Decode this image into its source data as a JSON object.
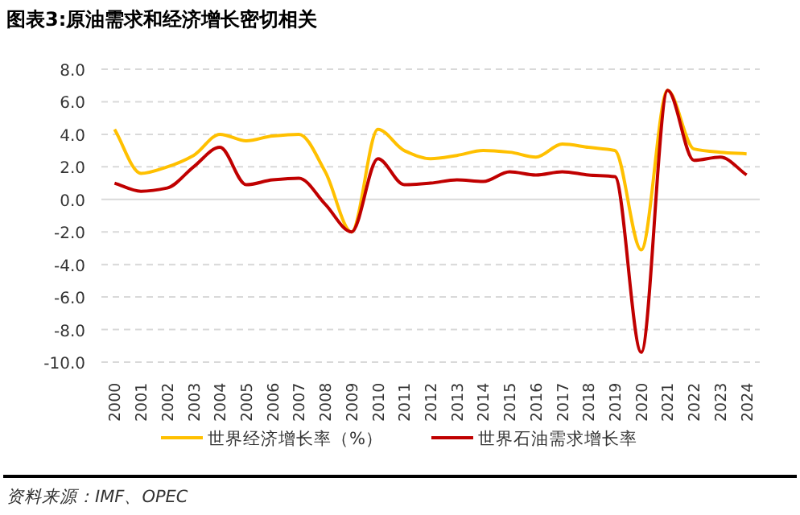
{
  "chart_data": {
    "type": "line",
    "title": "图表3:原油需求和经济增长密切相关",
    "annotations": [
      "资料来源：IMF、OPEC"
    ],
    "categories": [
      "2000",
      "2001",
      "2002",
      "2003",
      "2004",
      "2005",
      "2006",
      "2007",
      "2008",
      "2009",
      "2010",
      "2011",
      "2012",
      "2013",
      "2014",
      "2015",
      "2016",
      "2017",
      "2018",
      "2019",
      "2020",
      "2021",
      "2022",
      "2023",
      "2024"
    ],
    "series": [
      {
        "name": "世界经济增长率（%）",
        "color": "#ffc000",
        "values": [
          4.3,
          1.6,
          2.0,
          2.7,
          4.0,
          3.6,
          3.9,
          4.0,
          1.7,
          -2.0,
          4.3,
          3.0,
          2.5,
          2.7,
          3.0,
          2.9,
          2.6,
          3.4,
          3.2,
          3.0,
          -3.1,
          6.7,
          3.1,
          2.9,
          2.8
        ]
      },
      {
        "name": "世界石油需求增长率",
        "color": "#c00000",
        "values": [
          1.0,
          0.5,
          0.7,
          2.0,
          3.2,
          0.9,
          1.2,
          1.3,
          -0.3,
          -2.0,
          2.5,
          0.9,
          1.0,
          1.2,
          1.1,
          1.7,
          1.5,
          1.7,
          1.5,
          1.4,
          -9.4,
          6.7,
          2.4,
          2.6,
          1.5
        ]
      }
    ],
    "ylim": [
      -10,
      8
    ],
    "yticks": [
      {
        "value": -10,
        "label": "-10.0"
      },
      {
        "value": -8,
        "label": "-8.0"
      },
      {
        "value": -6,
        "label": "-6.0"
      },
      {
        "value": -4,
        "label": "-4.0"
      },
      {
        "value": -2,
        "label": "-2.0"
      },
      {
        "value": 0,
        "label": "0.0"
      },
      {
        "value": 2,
        "label": "2.0"
      },
      {
        "value": 4,
        "label": "4.0"
      },
      {
        "value": 6,
        "label": "6.0"
      },
      {
        "value": 8,
        "label": "8.0"
      }
    ],
    "grid": "y",
    "legend": "bottom",
    "marker": "none",
    "line_style": "solid"
  }
}
